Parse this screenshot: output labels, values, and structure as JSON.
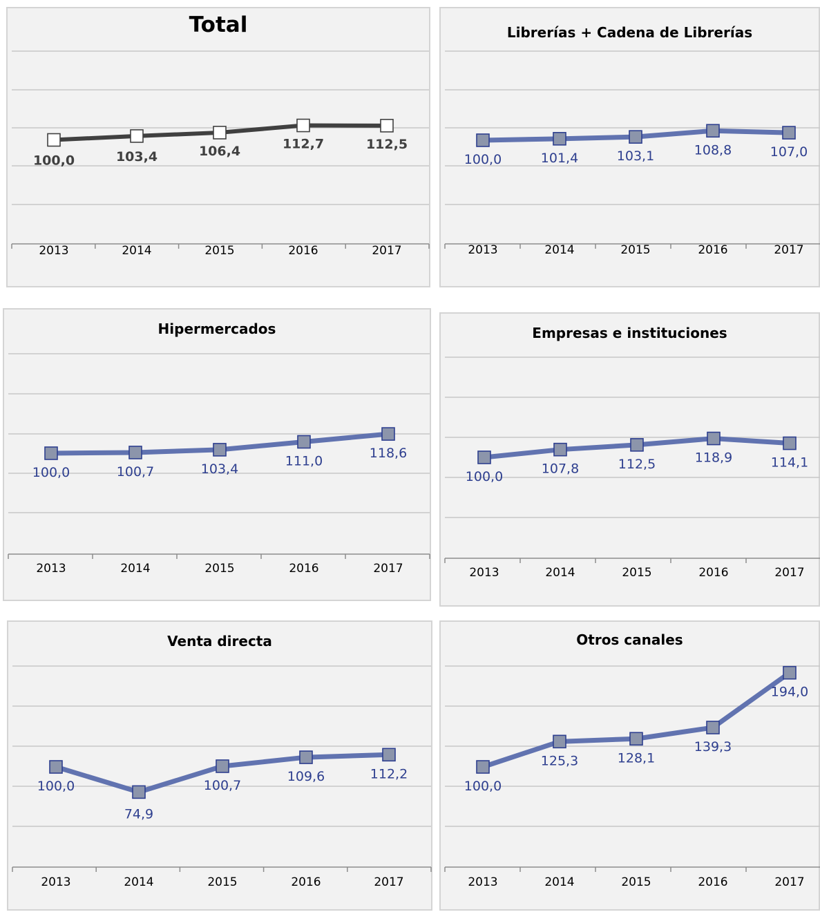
{
  "colors": {
    "total_line": "#404040",
    "total_marker": "#ffffff",
    "total_label": "#404040",
    "series_line": "#6173b0",
    "series_marker": "#8c95ab",
    "series_marker_edge": "#2e3f8f",
    "series_label": "#2e3f8f",
    "grid": "#c8c8c8",
    "axis": "#8c8c8c"
  },
  "chart_data": [
    {
      "type": "line",
      "title": "Total",
      "categories": [
        "2013",
        "2014",
        "2015",
        "2016",
        "2017"
      ],
      "values": [
        100.0,
        103.4,
        106.4,
        112.7,
        112.5
      ],
      "labels": [
        "100,0",
        "103,4",
        "106,4",
        "112,7",
        "112,5"
      ],
      "style": "total"
    },
    {
      "type": "line",
      "title": "Librerías + Cadena de Librerías",
      "categories": [
        "2013",
        "2014",
        "2015",
        "2016",
        "2017"
      ],
      "values": [
        100.0,
        101.4,
        103.1,
        108.8,
        107.0
      ],
      "labels": [
        "100,0",
        "101,4",
        "103,1",
        "108,8",
        "107,0"
      ],
      "style": "series"
    },
    {
      "type": "line",
      "title": "Hipermercados",
      "categories": [
        "2013",
        "2014",
        "2015",
        "2016",
        "2017"
      ],
      "values": [
        100.0,
        100.7,
        103.4,
        111.0,
        118.6
      ],
      "labels": [
        "100,0",
        "100,7",
        "103,4",
        "111,0",
        "118,6"
      ],
      "style": "series"
    },
    {
      "type": "line",
      "title": "Empresas e instituciones",
      "categories": [
        "2013",
        "2014",
        "2015",
        "2016",
        "2017"
      ],
      "values": [
        100.0,
        107.8,
        112.5,
        118.9,
        114.1
      ],
      "labels": [
        "100,0",
        "107,8",
        "112,5",
        "118,9",
        "114,1"
      ],
      "style": "series"
    },
    {
      "type": "line",
      "title": "Venta directa",
      "categories": [
        "2013",
        "2014",
        "2015",
        "2016",
        "2017"
      ],
      "values": [
        100.0,
        74.9,
        100.7,
        109.6,
        112.2
      ],
      "labels": [
        "100,0",
        "74,9",
        "100,7",
        "109,6",
        "112,2"
      ],
      "style": "series"
    },
    {
      "type": "line",
      "title": "Otros canales",
      "categories": [
        "2013",
        "2014",
        "2015",
        "2016",
        "2017"
      ],
      "values": [
        100.0,
        125.3,
        128.1,
        139.3,
        194.0
      ],
      "labels": [
        "100,0",
        "125,3",
        "128,1",
        "139,3",
        "194,0"
      ],
      "style": "series"
    }
  ]
}
